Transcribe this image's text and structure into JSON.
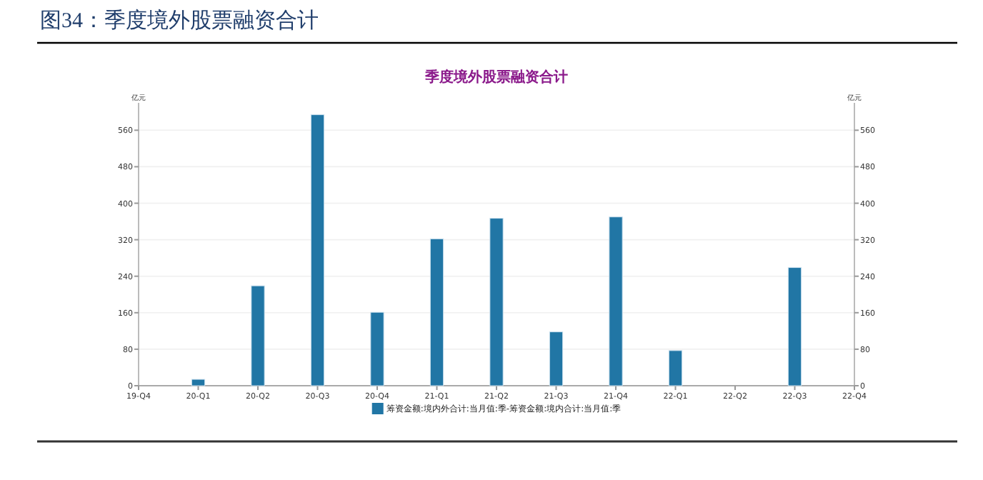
{
  "chart_data": {
    "type": "bar",
    "title": "图34：季度境外股票融资合计",
    "subtitle": "季度境外股票融资合计",
    "ylabel": "亿元",
    "y2label": "亿元",
    "categories": [
      "19-Q4",
      "20-Q1",
      "20-Q2",
      "20-Q3",
      "20-Q4",
      "21-Q1",
      "21-Q2",
      "21-Q3",
      "21-Q4",
      "22-Q1",
      "22-Q2",
      "22-Q3",
      "22-Q4"
    ],
    "series": [
      {
        "name": "筹资金额:境内外合计:当月值:季-筹资金额:境内合计:当月值:季",
        "color": "#2176a5",
        "values": [
          null,
          14,
          219,
          594,
          161,
          322,
          367,
          118,
          370,
          77,
          0,
          259,
          null
        ]
      }
    ],
    "ylim": [
      0,
      620
    ],
    "yticks": [
      0,
      80,
      160,
      240,
      320,
      400,
      480,
      560
    ],
    "y2lim": [
      0,
      620
    ],
    "y2ticks": [
      0,
      80,
      160,
      240,
      320,
      400,
      480,
      560
    ],
    "grid": "y",
    "legend": "bottom"
  }
}
